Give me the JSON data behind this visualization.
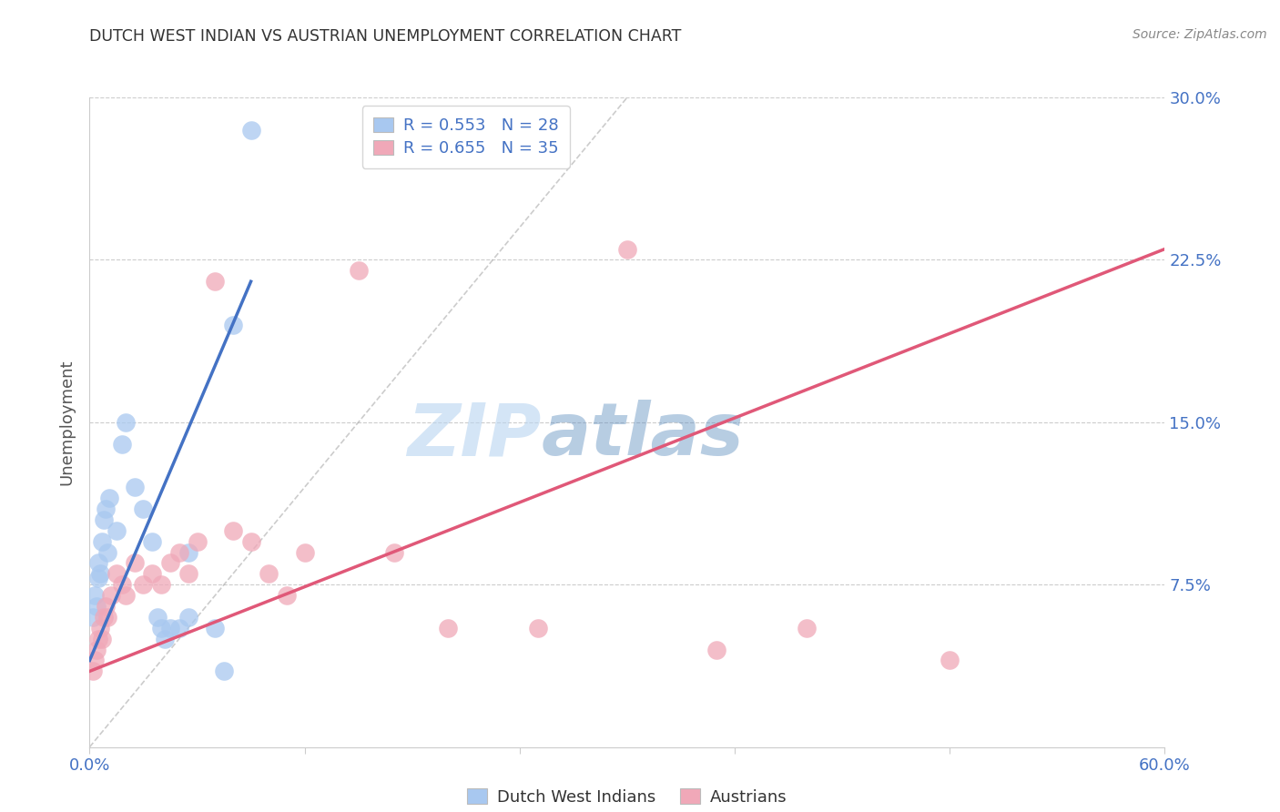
{
  "title": "DUTCH WEST INDIAN VS AUSTRIAN UNEMPLOYMENT CORRELATION CHART",
  "source": "Source: ZipAtlas.com",
  "ylabel": "Unemployment",
  "xlim": [
    0.0,
    60.0
  ],
  "ylim": [
    0.0,
    30.0
  ],
  "blue_color": "#a8c8f0",
  "pink_color": "#f0a8b8",
  "blue_line_color": "#4472c4",
  "pink_line_color": "#e05878",
  "blue_label": "Dutch West Indians",
  "pink_label": "Austrians",
  "legend_r_blue": "R = 0.553",
  "legend_n_blue": "N = 28",
  "legend_r_pink": "R = 0.655",
  "legend_n_pink": "N = 35",
  "blue_dots": [
    [
      0.2,
      6.0
    ],
    [
      0.3,
      7.0
    ],
    [
      0.4,
      6.5
    ],
    [
      0.5,
      7.8
    ],
    [
      0.5,
      8.5
    ],
    [
      0.6,
      8.0
    ],
    [
      0.7,
      9.5
    ],
    [
      0.8,
      10.5
    ],
    [
      0.9,
      11.0
    ],
    [
      1.0,
      9.0
    ],
    [
      1.1,
      11.5
    ],
    [
      1.5,
      10.0
    ],
    [
      1.8,
      14.0
    ],
    [
      2.0,
      15.0
    ],
    [
      2.5,
      12.0
    ],
    [
      3.0,
      11.0
    ],
    [
      3.5,
      9.5
    ],
    [
      3.8,
      6.0
    ],
    [
      4.0,
      5.5
    ],
    [
      4.2,
      5.0
    ],
    [
      4.5,
      5.5
    ],
    [
      5.0,
      5.5
    ],
    [
      5.5,
      9.0
    ],
    [
      5.5,
      6.0
    ],
    [
      7.0,
      5.5
    ],
    [
      7.5,
      3.5
    ],
    [
      8.0,
      19.5
    ],
    [
      9.0,
      28.5
    ]
  ],
  "pink_dots": [
    [
      0.2,
      3.5
    ],
    [
      0.3,
      4.0
    ],
    [
      0.4,
      4.5
    ],
    [
      0.5,
      5.0
    ],
    [
      0.6,
      5.5
    ],
    [
      0.7,
      5.0
    ],
    [
      0.8,
      6.0
    ],
    [
      0.9,
      6.5
    ],
    [
      1.0,
      6.0
    ],
    [
      1.2,
      7.0
    ],
    [
      1.5,
      8.0
    ],
    [
      1.8,
      7.5
    ],
    [
      2.0,
      7.0
    ],
    [
      2.5,
      8.5
    ],
    [
      3.0,
      7.5
    ],
    [
      3.5,
      8.0
    ],
    [
      4.0,
      7.5
    ],
    [
      4.5,
      8.5
    ],
    [
      5.0,
      9.0
    ],
    [
      5.5,
      8.0
    ],
    [
      6.0,
      9.5
    ],
    [
      7.0,
      21.5
    ],
    [
      8.0,
      10.0
    ],
    [
      9.0,
      9.5
    ],
    [
      10.0,
      8.0
    ],
    [
      11.0,
      7.0
    ],
    [
      12.0,
      9.0
    ],
    [
      15.0,
      22.0
    ],
    [
      17.0,
      9.0
    ],
    [
      20.0,
      5.5
    ],
    [
      25.0,
      5.5
    ],
    [
      30.0,
      23.0
    ],
    [
      35.0,
      4.5
    ],
    [
      40.0,
      5.5
    ],
    [
      48.0,
      4.0
    ]
  ],
  "blue_line": {
    "x0": 0.0,
    "y0": 4.0,
    "x1": 9.0,
    "y1": 21.5
  },
  "pink_line": {
    "x0": 0.0,
    "y0": 3.5,
    "x1": 60.0,
    "y1": 23.0
  },
  "ref_line": {
    "x0": 0.0,
    "y0": 0.0,
    "x1": 30.0,
    "y1": 30.0
  },
  "watermark_zip": "ZIP",
  "watermark_atlas": "atlas",
  "background_color": "#ffffff",
  "grid_color": "#cccccc",
  "title_color": "#333333",
  "tick_label_color": "#4472c4"
}
